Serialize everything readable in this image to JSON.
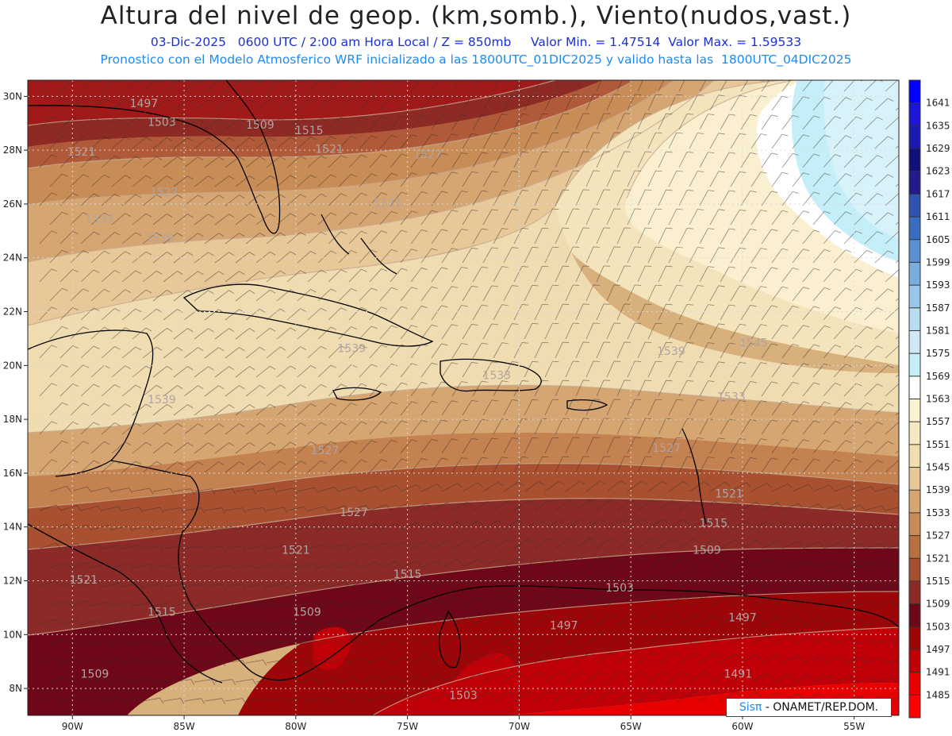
{
  "header": {
    "title": "Altura del nivel de geop. (km,somb.), Viento(nudos,vast.)",
    "line1": "03-Dic-2025   0600 UTC / 2:00 am Hora Local / Z = 850mb     Valor Min. = 1.47514  Valor Max. = 1.59533",
    "line2": "Pronostico con el Modelo Atmosferico WRF inicializado a las 1800UTC_01DIC2025 y valido hasta las  1800UTC_04DIC2025"
  },
  "map": {
    "lon_range": [
      -92,
      -53
    ],
    "lat_range": [
      7,
      30.6
    ],
    "lon_ticks": [
      {
        "value": -90,
        "label": "90W"
      },
      {
        "value": -85,
        "label": "85W"
      },
      {
        "value": -80,
        "label": "80W"
      },
      {
        "value": -75,
        "label": "75W"
      },
      {
        "value": -70,
        "label": "70W"
      },
      {
        "value": -65,
        "label": "65W"
      },
      {
        "value": -60,
        "label": "60W"
      },
      {
        "value": -55,
        "label": "55W"
      }
    ],
    "lat_ticks": [
      {
        "value": 30,
        "label": "30N"
      },
      {
        "value": 28,
        "label": "28N"
      },
      {
        "value": 26,
        "label": "26N"
      },
      {
        "value": 24,
        "label": "24N"
      },
      {
        "value": 22,
        "label": "22N"
      },
      {
        "value": 20,
        "label": "20N"
      },
      {
        "value": 18,
        "label": "18N"
      },
      {
        "value": 16,
        "label": "16N"
      },
      {
        "value": 14,
        "label": "14N"
      },
      {
        "value": 12,
        "label": "12N"
      },
      {
        "value": 10,
        "label": "10N"
      },
      {
        "value": 8,
        "label": "8N"
      }
    ],
    "contour_labels": [
      {
        "text": "1497",
        "lon": -86.8,
        "lat": 29.6
      },
      {
        "text": "1503",
        "lon": -86.0,
        "lat": 28.9
      },
      {
        "text": "1509",
        "lon": -81.6,
        "lat": 28.8
      },
      {
        "text": "1515",
        "lon": -79.4,
        "lat": 28.6
      },
      {
        "text": "1521",
        "lon": -89.6,
        "lat": 27.8
      },
      {
        "text": "1521",
        "lon": -78.5,
        "lat": 27.9
      },
      {
        "text": "1527",
        "lon": -85.9,
        "lat": 26.3
      },
      {
        "text": "1527",
        "lon": -74.1,
        "lat": 27.7
      },
      {
        "text": "1533",
        "lon": -88.8,
        "lat": 25.3
      },
      {
        "text": "1533",
        "lon": -75.9,
        "lat": 25.9
      },
      {
        "text": "1539",
        "lon": -86.1,
        "lat": 24.6
      },
      {
        "text": "1539",
        "lon": -77.5,
        "lat": 20.5
      },
      {
        "text": "1533",
        "lon": -71.0,
        "lat": 19.5
      },
      {
        "text": "1539",
        "lon": -86.0,
        "lat": 18.6
      },
      {
        "text": "1539",
        "lon": -63.2,
        "lat": 20.4
      },
      {
        "text": "1545",
        "lon": -59.5,
        "lat": 20.7
      },
      {
        "text": "1533",
        "lon": -60.5,
        "lat": 18.7
      },
      {
        "text": "1527",
        "lon": -78.7,
        "lat": 16.7
      },
      {
        "text": "1527",
        "lon": -63.4,
        "lat": 16.8
      },
      {
        "text": "1521",
        "lon": -60.6,
        "lat": 15.1
      },
      {
        "text": "1527",
        "lon": -77.4,
        "lat": 14.4
      },
      {
        "text": "1515",
        "lon": -61.3,
        "lat": 14.0
      },
      {
        "text": "1521",
        "lon": -80.0,
        "lat": 13.0
      },
      {
        "text": "1509",
        "lon": -61.6,
        "lat": 13.0
      },
      {
        "text": "1521",
        "lon": -89.5,
        "lat": 11.9
      },
      {
        "text": "1515",
        "lon": -75.0,
        "lat": 12.1
      },
      {
        "text": "1503",
        "lon": -65.5,
        "lat": 11.6
      },
      {
        "text": "1515",
        "lon": -86.0,
        "lat": 10.7
      },
      {
        "text": "1509",
        "lon": -79.5,
        "lat": 10.7
      },
      {
        "text": "1497",
        "lon": -68.0,
        "lat": 10.2
      },
      {
        "text": "1497",
        "lon": -60.0,
        "lat": 10.5
      },
      {
        "text": "1509",
        "lon": -89.0,
        "lat": 8.4
      },
      {
        "text": "1491",
        "lon": -60.2,
        "lat": 8.4
      },
      {
        "text": "1503",
        "lon": -72.5,
        "lat": 7.6
      }
    ]
  },
  "colorbar": {
    "labels": [
      "1641",
      "1635",
      "1629",
      "1623",
      "1617",
      "1611",
      "1605",
      "1599",
      "1593",
      "1587",
      "1581",
      "1575",
      "1569",
      "1563",
      "1557",
      "1551",
      "1545",
      "1539",
      "1533",
      "1527",
      "1521",
      "1515",
      "1509",
      "1503",
      "1497",
      "1491",
      "1485"
    ],
    "colors": [
      "#0000ff",
      "#1e14d6",
      "#1a1ab0",
      "#10107a",
      "#241a8c",
      "#2c54b0",
      "#3a6cc2",
      "#5a8fd0",
      "#7aaedc",
      "#98c8e8",
      "#b8dcf0",
      "#cfe8f6",
      "#c4eff8",
      "#ffffff",
      "#fbf2d0",
      "#f6e8c0",
      "#f0deb0",
      "#e8c898",
      "#d6a672",
      "#c88c56",
      "#b8703e",
      "#a45030",
      "#8e2a26",
      "#6e0818",
      "#9c0608",
      "#c00008",
      "#e80000",
      "#ff0000"
    ]
  },
  "credit": {
    "brand": "Sisπ",
    "text": " - ONAMET/REP.DOM."
  }
}
